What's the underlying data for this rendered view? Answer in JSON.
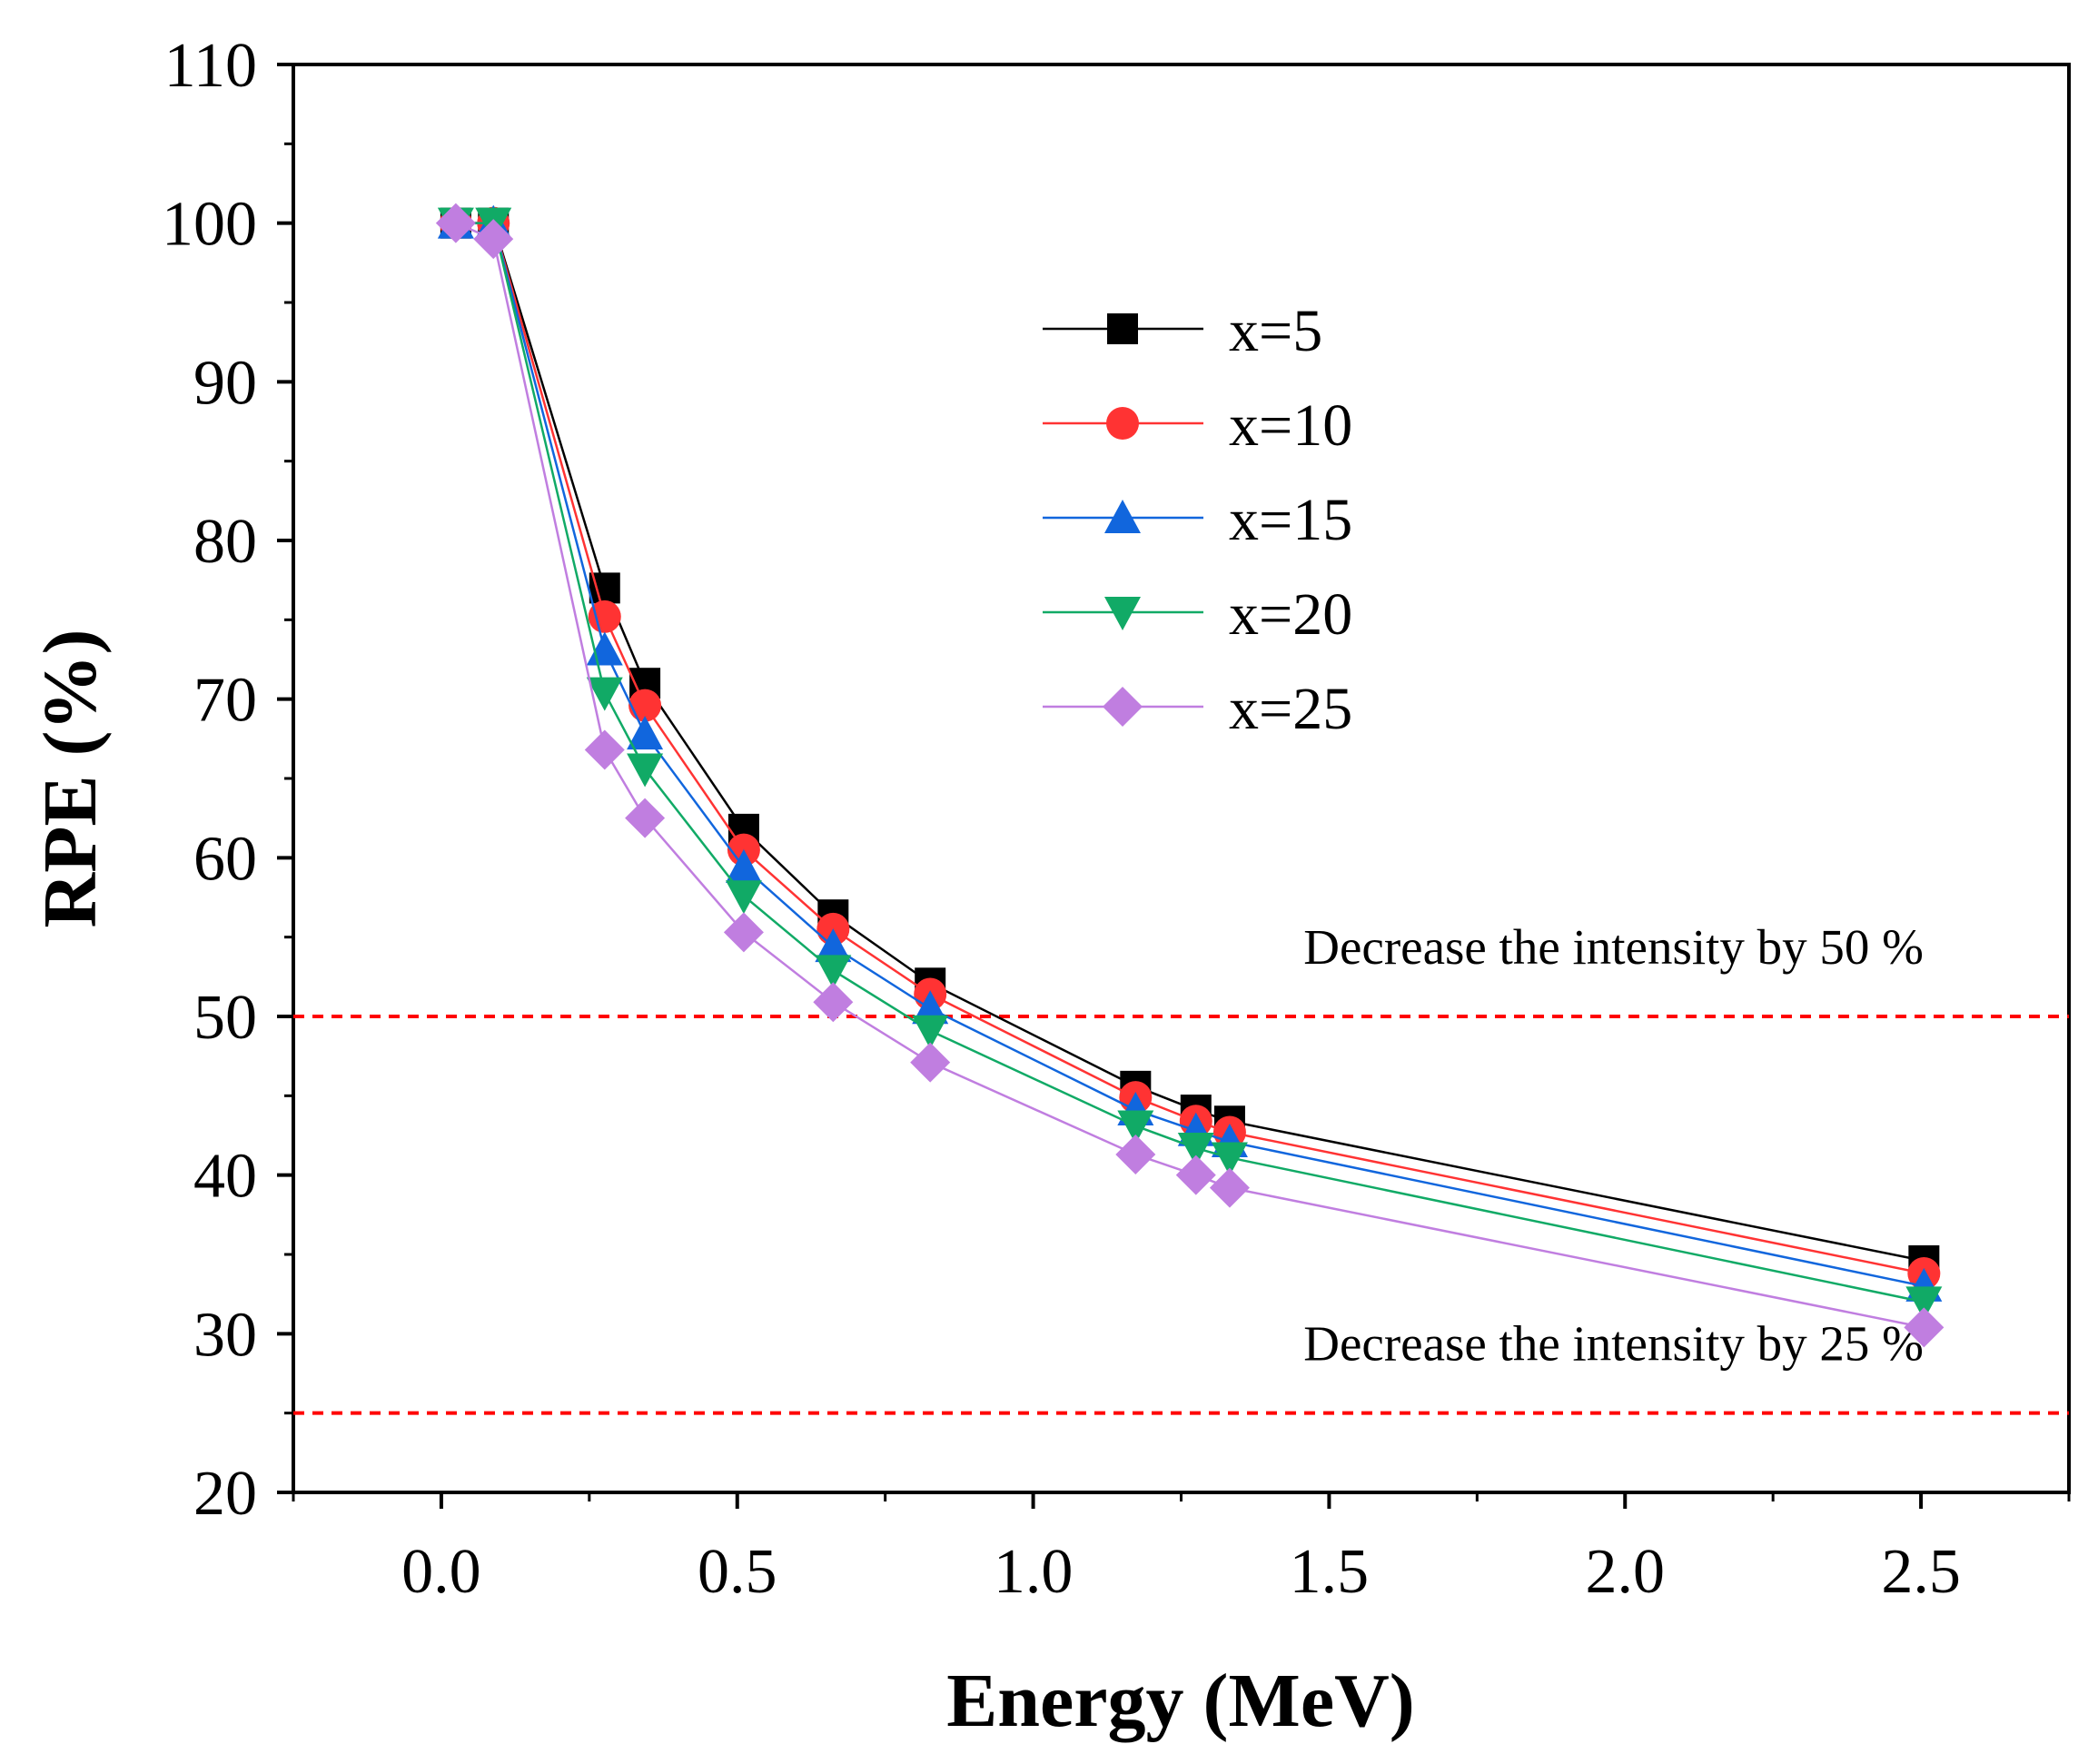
{
  "chart_data": {
    "type": "line",
    "xlabel": "Energy (MeV)",
    "ylabel": "RPE (%)",
    "xlim": [
      -0.25,
      2.75
    ],
    "ylim": [
      20,
      110
    ],
    "xticks": [
      0.0,
      0.5,
      1.0,
      1.5,
      2.0,
      2.5
    ],
    "xtick_labels": [
      "0.0",
      "0.5",
      "1.0",
      "1.5",
      "2.0",
      "2.5"
    ],
    "xminor_step": 0.25,
    "yticks": [
      20,
      30,
      40,
      50,
      60,
      70,
      80,
      90,
      100,
      110
    ],
    "ytick_labels": [
      "20",
      "30",
      "40",
      "50",
      "60",
      "70",
      "80",
      "90",
      "100",
      "110"
    ],
    "yminor_step": 5,
    "grid": false,
    "legend_position": "upper-right",
    "x": [
      0.0245,
      0.088,
      0.276,
      0.344,
      0.511,
      0.662,
      0.826,
      1.173,
      1.275,
      1.332,
      2.505
    ],
    "series": [
      {
        "name": "x=5",
        "color": "#000000",
        "marker": "square",
        "values": [
          100,
          100,
          77.0,
          71.0,
          61.8,
          56.4,
          52.1,
          45.6,
          44.1,
          43.4,
          34.6
        ]
      },
      {
        "name": "x=10",
        "color": "#ff3333",
        "marker": "circle",
        "values": [
          100,
          100,
          75.2,
          69.6,
          60.5,
          55.5,
          51.4,
          44.9,
          43.4,
          42.7,
          33.8
        ]
      },
      {
        "name": "x=15",
        "color": "#1166dd",
        "marker": "triangle-up",
        "values": [
          100,
          100,
          73.1,
          67.8,
          59.4,
          54.4,
          50.5,
          44.1,
          42.8,
          42.1,
          33.0
        ]
      },
      {
        "name": "x=20",
        "color": "#11aa66",
        "marker": "triangle-down",
        "values": [
          100,
          100,
          70.4,
          65.6,
          57.6,
          52.9,
          49.1,
          43.1,
          41.7,
          41.1,
          32.0
        ]
      },
      {
        "name": "x=25",
        "color": "#c07ee0",
        "marker": "diamond",
        "values": [
          100,
          99.0,
          66.8,
          62.5,
          55.3,
          50.9,
          47.1,
          41.3,
          40.0,
          39.2,
          30.4
        ]
      }
    ],
    "reference_lines": [
      {
        "y": 50,
        "color": "#ff0000",
        "style": "dashed",
        "label": "Decrease the intensity by 50 %"
      },
      {
        "y": 25,
        "color": "#ff0000",
        "style": "dashed",
        "label": "Decrease the intensity by 25 %"
      }
    ]
  }
}
